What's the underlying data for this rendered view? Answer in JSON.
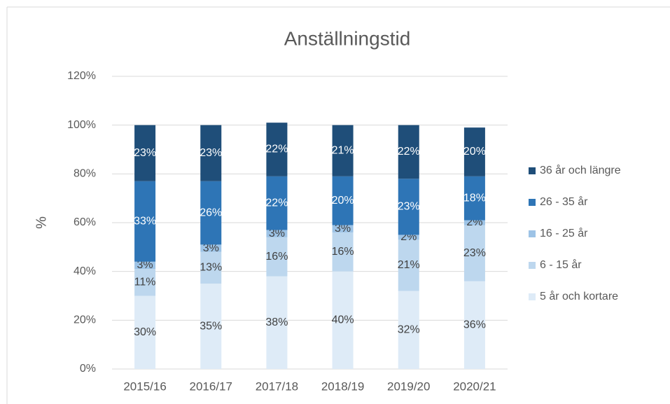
{
  "chart_data": {
    "type": "stacked_bar",
    "title": "Anställningstid",
    "y_label": "%",
    "categories": [
      "2015/16",
      "2016/17",
      "2017/18",
      "2018/19",
      "2019/20",
      "2020/21"
    ],
    "series": [
      {
        "name": "5 år och kortare",
        "color": "#deebf7",
        "values": [
          30,
          35,
          38,
          40,
          32,
          36
        ],
        "value_labels": [
          "30%",
          "35%",
          "38%",
          "40%",
          "32%",
          "36%"
        ]
      },
      {
        "name": "6 - 15 år",
        "color": "#bdd7ee",
        "values": [
          11,
          13,
          16,
          16,
          21,
          23
        ],
        "value_labels": [
          "11%",
          "13%",
          "16%",
          "16%",
          "21%",
          "23%"
        ]
      },
      {
        "name": "16 - 25 år",
        "color": "#9dc3e6",
        "values": [
          3,
          3,
          3,
          3,
          2,
          2
        ],
        "value_labels": [
          "3%",
          "3%",
          "3%",
          "3%",
          "2%",
          "2%"
        ]
      },
      {
        "name": "26 - 35 år",
        "color": "#2e75b6",
        "values": [
          33,
          26,
          22,
          20,
          23,
          18
        ],
        "value_labels": [
          "33%",
          "26%",
          "22%",
          "20%",
          "23%",
          "18%"
        ]
      },
      {
        "name": "36 år och längre",
        "color": "#1f4e79",
        "values": [
          23,
          23,
          22,
          21,
          22,
          20
        ],
        "value_labels": [
          "23%",
          "23%",
          "22%",
          "21%",
          "22%",
          "20%"
        ]
      }
    ],
    "ylim": [
      0,
      120
    ],
    "yticks": [
      {
        "value": 0,
        "label": "0%"
      },
      {
        "value": 20,
        "label": "20%"
      },
      {
        "value": 40,
        "label": "40%"
      },
      {
        "value": 60,
        "label": "60%"
      },
      {
        "value": 80,
        "label": "80%"
      },
      {
        "value": 100,
        "label": "100%"
      },
      {
        "value": 120,
        "label": "120%"
      }
    ],
    "grid": true,
    "legend": "right"
  }
}
